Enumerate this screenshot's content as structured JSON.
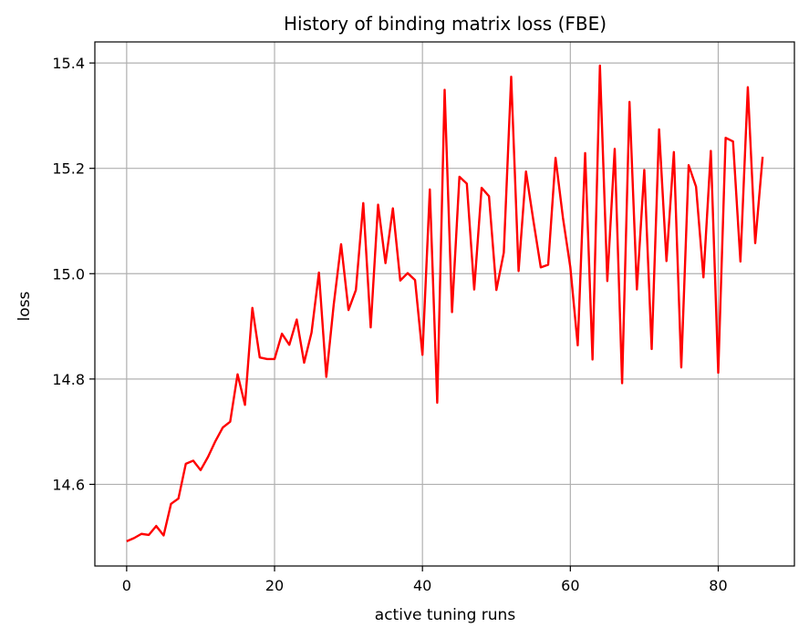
{
  "chart_data": {
    "type": "line",
    "title": "History of binding matrix loss (FBE)",
    "xlabel": "active tuning runs",
    "ylabel": "loss",
    "xlim": [
      -4.3,
      90.3
    ],
    "ylim": [
      14.445,
      15.44
    ],
    "xticks": [
      0,
      20,
      40,
      60,
      80
    ],
    "yticks": [
      14.6,
      14.8,
      15.0,
      15.2,
      15.4
    ],
    "ytick_labels": [
      "14.6",
      "14.8",
      "15.0",
      "15.2",
      "15.4"
    ],
    "grid": true,
    "line_color": "#ff0000",
    "x": [
      0,
      1,
      2,
      3,
      4,
      5,
      6,
      7,
      8,
      9,
      10,
      11,
      12,
      13,
      14,
      15,
      16,
      17,
      18,
      19,
      20,
      21,
      22,
      23,
      24,
      25,
      26,
      27,
      28,
      29,
      30,
      31,
      32,
      33,
      34,
      35,
      36,
      37,
      38,
      39,
      40,
      41,
      42,
      43,
      44,
      45,
      46,
      47,
      48,
      49,
      50,
      51,
      52,
      53,
      54,
      55,
      56,
      57,
      58,
      59,
      60,
      61,
      62,
      63,
      64,
      65,
      66,
      67,
      68,
      69,
      70,
      71,
      72,
      73,
      74,
      75,
      76,
      77,
      78,
      79,
      80,
      81,
      82,
      83,
      84,
      85,
      86
    ],
    "values": [
      14.492,
      14.498,
      14.506,
      14.504,
      14.521,
      14.503,
      14.563,
      14.573,
      14.639,
      14.645,
      14.627,
      14.652,
      14.682,
      14.708,
      14.719,
      14.809,
      14.751,
      14.935,
      14.841,
      14.838,
      14.838,
      14.886,
      14.865,
      14.913,
      14.831,
      14.888,
      15.002,
      14.804,
      14.941,
      15.056,
      14.931,
      14.969,
      15.134,
      14.898,
      15.131,
      15.02,
      15.124,
      14.987,
      15.001,
      14.988,
      14.846,
      15.16,
      14.755,
      15.349,
      14.927,
      15.184,
      15.171,
      14.97,
      15.163,
      15.147,
      14.969,
      15.04,
      15.374,
      15.005,
      15.194,
      15.101,
      15.012,
      15.017,
      15.22,
      15.106,
      15.012,
      14.864,
      15.229,
      14.837,
      15.395,
      14.986,
      15.237,
      14.792,
      15.326,
      14.97,
      15.197,
      14.857,
      15.274,
      15.024,
      15.231,
      14.822,
      15.206,
      15.165,
      14.993,
      15.233,
      14.812,
      15.258,
      15.251,
      15.023,
      15.354,
      15.058,
      15.222
    ]
  }
}
